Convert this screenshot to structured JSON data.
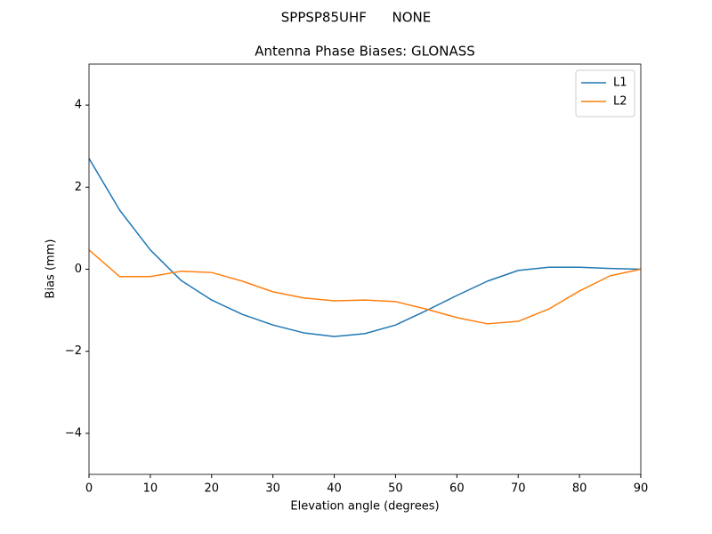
{
  "chart_data": {
    "type": "line",
    "suptitle": "SPPSP85UHF      NONE",
    "title": "Antenna Phase Biases: GLONASS",
    "xlabel": "Elevation angle (degrees)",
    "ylabel": "Bias (mm)",
    "x": [
      0,
      5,
      10,
      15,
      20,
      25,
      30,
      35,
      40,
      45,
      50,
      55,
      60,
      65,
      70,
      75,
      80,
      85,
      90
    ],
    "series": [
      {
        "name": "L1",
        "color": "#1f77b4",
        "values": [
          2.7,
          1.44,
          0.47,
          -0.27,
          -0.75,
          -1.1,
          -1.36,
          -1.55,
          -1.64,
          -1.57,
          -1.36,
          -1.01,
          -0.64,
          -0.29,
          -0.03,
          0.05,
          0.05,
          0.02,
          0
        ]
      },
      {
        "name": "L2",
        "color": "#ff7f0e",
        "values": [
          0.47,
          -0.18,
          -0.18,
          -0.05,
          -0.08,
          -0.29,
          -0.55,
          -0.7,
          -0.77,
          -0.75,
          -0.79,
          -0.97,
          -1.18,
          -1.33,
          -1.27,
          -0.97,
          -0.53,
          -0.16,
          0
        ]
      }
    ],
    "xlim": [
      0,
      90
    ],
    "ylim": [
      -5,
      5
    ],
    "xticks": [
      0,
      10,
      20,
      30,
      40,
      50,
      60,
      70,
      80,
      90
    ],
    "yticks": [
      {
        "value": -4,
        "label": "−4"
      },
      {
        "value": -2,
        "label": "−2"
      },
      0,
      2,
      4
    ],
    "legend": "upper right"
  }
}
